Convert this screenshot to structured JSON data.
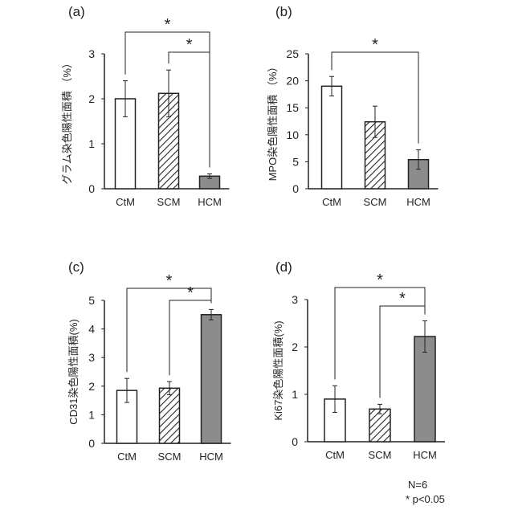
{
  "chart_data": [
    {
      "type": "bar",
      "panel_label": "(a)",
      "ylabel": "グラム染色陽性面積 （%）",
      "categories": [
        "CtM",
        "SCM",
        "HCM"
      ],
      "values": [
        2.0,
        2.12,
        0.28
      ],
      "errors": [
        0.4,
        0.52,
        0.05
      ],
      "ylim": [
        0,
        3
      ],
      "yticks": [
        "0",
        "1",
        "2",
        "3"
      ],
      "significance": [
        {
          "from": "CtM",
          "to": "HCM",
          "label": "*"
        },
        {
          "from": "SCM",
          "to": "HCM",
          "label": "*"
        }
      ]
    },
    {
      "type": "bar",
      "panel_label": "(b)",
      "ylabel": "MPO染色陽性面積 （%）",
      "categories": [
        "CtM",
        "SCM",
        "HCM"
      ],
      "values": [
        19.0,
        12.4,
        5.4
      ],
      "errors": [
        1.8,
        2.9,
        1.8
      ],
      "ylim": [
        0,
        25
      ],
      "yticks": [
        "0",
        "5",
        "10",
        "15",
        "20",
        "25"
      ],
      "significance": [
        {
          "from": "CtM",
          "to": "HCM",
          "label": "*"
        }
      ]
    },
    {
      "type": "bar",
      "panel_label": "(c)",
      "ylabel": "CD31染色陽性面積(%)",
      "categories": [
        "CtM",
        "SCM",
        "HCM"
      ],
      "values": [
        1.85,
        1.93,
        4.5
      ],
      "errors": [
        0.42,
        0.23,
        0.18
      ],
      "ylim": [
        0,
        5
      ],
      "yticks": [
        "0",
        "1",
        "2",
        "3",
        "4",
        "5"
      ],
      "significance": [
        {
          "from": "CtM",
          "to": "HCM",
          "label": "*"
        },
        {
          "from": "SCM",
          "to": "HCM",
          "label": "*"
        }
      ]
    },
    {
      "type": "bar",
      "panel_label": "(d)",
      "ylabel": "Ki67染色陽性面積(%)",
      "categories": [
        "CtM",
        "SCM",
        "HCM"
      ],
      "values": [
        0.9,
        0.69,
        2.22
      ],
      "errors": [
        0.28,
        0.1,
        0.33
      ],
      "ylim": [
        0,
        3
      ],
      "yticks": [
        "0",
        "1",
        "2",
        "3"
      ],
      "significance": [
        {
          "from": "CtM",
          "to": "HCM",
          "label": "*"
        },
        {
          "from": "SCM",
          "to": "HCM",
          "label": "*"
        }
      ]
    }
  ],
  "bar_styles": {
    "CtM": "#ffffff",
    "SCM": "hatch",
    "HCM": "#8c8c8c"
  },
  "footnote": {
    "n": "N=6",
    "p": "* p<0.05"
  }
}
